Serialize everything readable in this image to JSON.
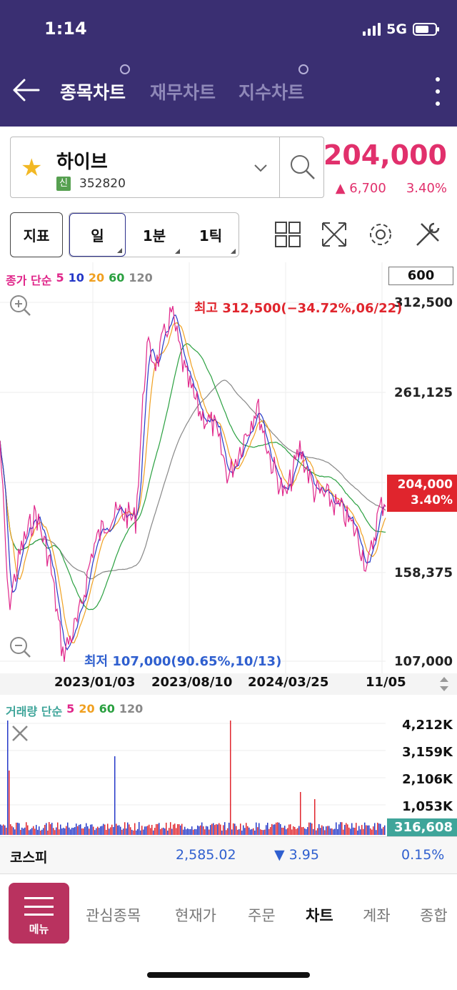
{
  "status": {
    "time": "1:14",
    "network": "5G"
  },
  "header": {
    "tabs": [
      {
        "label": "종목차트",
        "active": true
      },
      {
        "label": "재무차트",
        "active": false
      },
      {
        "label": "지수차트",
        "active": false
      }
    ],
    "icons": [
      "back-arrow-icon",
      "kebab-menu-icon"
    ]
  },
  "stock": {
    "name": "하이브",
    "badge": "신",
    "code": "352820",
    "price": "204,000",
    "change": "▲ 6,700",
    "change_pct": "3.40%",
    "favorite": true
  },
  "toolbar": {
    "indicator_label": "지표",
    "periods": [
      "일",
      "1분",
      "1틱"
    ],
    "selected_period": "일",
    "icons": [
      "grid-layout-icon",
      "expand-icon",
      "settings-gear-icon",
      "tools-icon"
    ]
  },
  "chart": {
    "legend": {
      "label": "종가 단순",
      "ma": [
        "5",
        "10",
        "20",
        "60",
        "120"
      ]
    },
    "zoom_count": "600",
    "y_labels": [
      "312,500",
      "261,125",
      "158,375",
      "107,000"
    ],
    "current_price_tag": [
      "204,000",
      "3.40%"
    ],
    "high_annotation": "최고 312,500(−34.72%,06/22)",
    "low_annotation": "최저 107,000(90.65%,10/13)",
    "dates": [
      "2023/01/03",
      "2023/08/10",
      "2024/03/25",
      "11/05"
    ]
  },
  "volume": {
    "legend": {
      "label": "거래량 단순",
      "ma": [
        "5",
        "20",
        "60",
        "120"
      ]
    },
    "y_labels": [
      "4,212K",
      "3,159K",
      "2,106K",
      "1,053K"
    ],
    "current_tag": "316,608"
  },
  "index": {
    "name": "코스피",
    "value": "2,585.02",
    "change": "▼ 3.95",
    "change_pct": "0.15%"
  },
  "bottom_nav": {
    "menu_label": "메뉴",
    "items": [
      "관심종목",
      "현재가",
      "주문",
      "차트",
      "계좌",
      "종합"
    ],
    "active": "차트"
  },
  "colors": {
    "header_bg": "#3a2f72",
    "up": "#e1306c",
    "down": "#2f5fcf",
    "ma5": "#e0268a",
    "ma10": "#2438c8",
    "ma20": "#f0a020",
    "ma60": "#2aa040",
    "ma120": "#888888"
  }
}
